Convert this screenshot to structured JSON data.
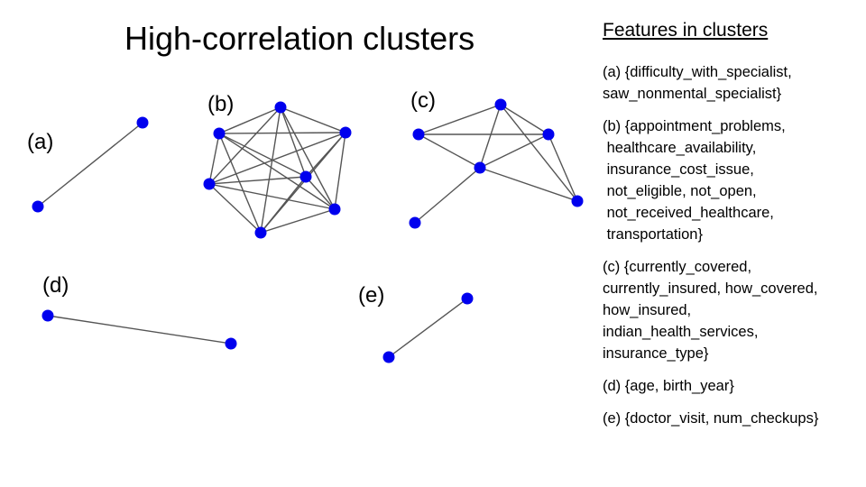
{
  "title": "High-correlation clusters",
  "features_title": "Features in clusters",
  "clusters": [
    {
      "id": "a",
      "label": "(a)",
      "members": [
        "difficulty_with_specialist",
        "saw_nonmental_specialist"
      ],
      "feature_lines": [
        "(a) {difficulty_with_specialist,",
        "saw_nonmental_specialist}"
      ]
    },
    {
      "id": "b",
      "label": "(b)",
      "members": [
        "appointment_problems",
        "healthcare_availability",
        "insurance_cost_issue",
        "not_eligible",
        "not_open",
        "not_received_healthcare",
        "transportation"
      ],
      "feature_lines": [
        "(b) {appointment_problems,",
        " healthcare_availability,",
        " insurance_cost_issue,",
        " not_eligible, not_open,",
        " not_received_healthcare,",
        " transportation}"
      ]
    },
    {
      "id": "c",
      "label": "(c)",
      "members": [
        "currently_covered",
        "currently_insured",
        "how_covered",
        "how_insured",
        "indian_health_services",
        "insurance_type"
      ],
      "feature_lines": [
        "(c) {currently_covered,",
        "currently_insured, how_covered,",
        "how_insured,",
        "indian_health_services,",
        "insurance_type}"
      ]
    },
    {
      "id": "d",
      "label": "(d)",
      "members": [
        "age",
        "birth_year"
      ],
      "feature_lines": [
        "(d) {age, birth_year}"
      ]
    },
    {
      "id": "e",
      "label": "(e)",
      "members": [
        "doctor_visit",
        "num_checkups"
      ],
      "feature_lines": [
        "(e) {doctor_visit, num_checkups}"
      ]
    }
  ],
  "colors": {
    "node": "#0000ee",
    "edge": "#555555"
  }
}
